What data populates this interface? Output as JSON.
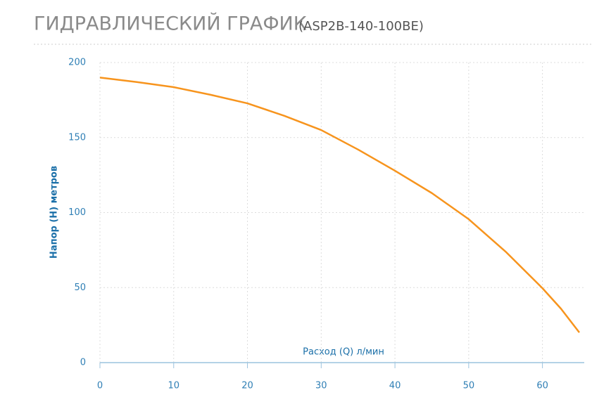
{
  "chart_data": {
    "type": "line",
    "title": "ГИДРАВЛИЧЕСКИЙ ГРАФИК",
    "subtitle": "(ASP2B-140-100BE)",
    "x_label": "Расход (Q) л/мин",
    "y_label": "Напор (Н) метров",
    "x": [
      0,
      5,
      10,
      15,
      20,
      25,
      30,
      35,
      40,
      45,
      50,
      55,
      60,
      62.5,
      65
    ],
    "series": [
      {
        "color": "#f7941d",
        "values": [
          190,
          187,
          183.6,
          178.5,
          172.8,
          164.5,
          155,
          142,
          127.9,
          113,
          95.6,
          74,
          49.6,
          36,
          20.1
        ]
      }
    ],
    "xlim": [
      0,
      65
    ],
    "xticks": [
      0,
      10,
      20,
      30,
      40,
      50,
      60
    ],
    "ylim": [
      0,
      200
    ],
    "yticks": [
      0,
      50,
      100,
      150,
      200
    ],
    "grid": true
  }
}
